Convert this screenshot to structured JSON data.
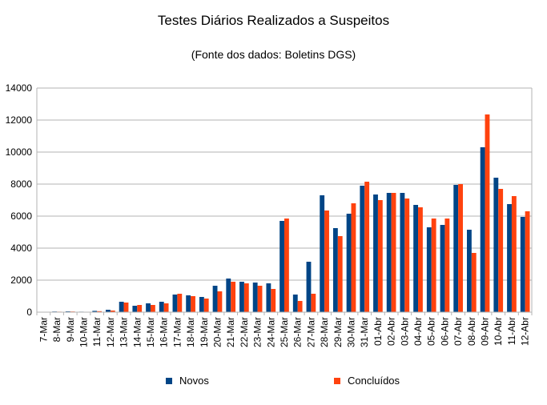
{
  "chart_data": {
    "type": "bar",
    "title": "Testes Diários Realizados a Suspeitos",
    "subtitle": "(Fonte dos dados: Boletins DGS)",
    "xlabel": "",
    "ylabel": "",
    "ylim": [
      0,
      14000
    ],
    "yticks": [
      "0",
      "2000",
      "4000",
      "6000",
      "8000",
      "10000",
      "12000",
      "14000"
    ],
    "grid": true,
    "legend_position": "bottom",
    "categories": [
      "7-Mar",
      "8-Mar",
      "9-Mar",
      "10-Mar",
      "11-Mar",
      "12-Mar",
      "13-Mar",
      "14-Mar",
      "15-Mar",
      "16-Mar",
      "17-Mar",
      "18-Mar",
      "19-Mar",
      "20-Mar",
      "21-Mar",
      "22-Mar",
      "23-Mar",
      "24-Mar",
      "25-Mar",
      "26-Mar",
      "27-Mar",
      "28-Mar",
      "29-Mar",
      "30-Mar",
      "31-Mar",
      "01-Abr",
      "02-Abr",
      "03-Abr",
      "04-Abr",
      "05-Abr",
      "06-Abr",
      "07-Abr",
      "08-Abr",
      "09-Abr",
      "10-Abr",
      "11-Abr",
      "12-Abr"
    ],
    "series": [
      {
        "name": "Novos",
        "color": "#004586",
        "values": [
          20,
          40,
          50,
          30,
          80,
          150,
          650,
          400,
          550,
          650,
          1100,
          1050,
          950,
          1650,
          2100,
          1900,
          1850,
          1800,
          5700,
          1100,
          3150,
          7300,
          5250,
          6150,
          7900,
          7350,
          7450,
          7450,
          6700,
          5300,
          5450,
          7950,
          5150,
          10300,
          8400,
          6750,
          5950
        ]
      },
      {
        "name": "Concluídos",
        "color": "#ff420e",
        "values": [
          10,
          30,
          40,
          20,
          60,
          100,
          600,
          450,
          450,
          550,
          1150,
          1000,
          850,
          1300,
          1900,
          1800,
          1650,
          1450,
          5850,
          700,
          1150,
          6350,
          4750,
          6800,
          8150,
          7000,
          7450,
          7100,
          6550,
          5850,
          5850,
          8000,
          3700,
          12350,
          7700,
          7250,
          6300
        ]
      }
    ]
  }
}
